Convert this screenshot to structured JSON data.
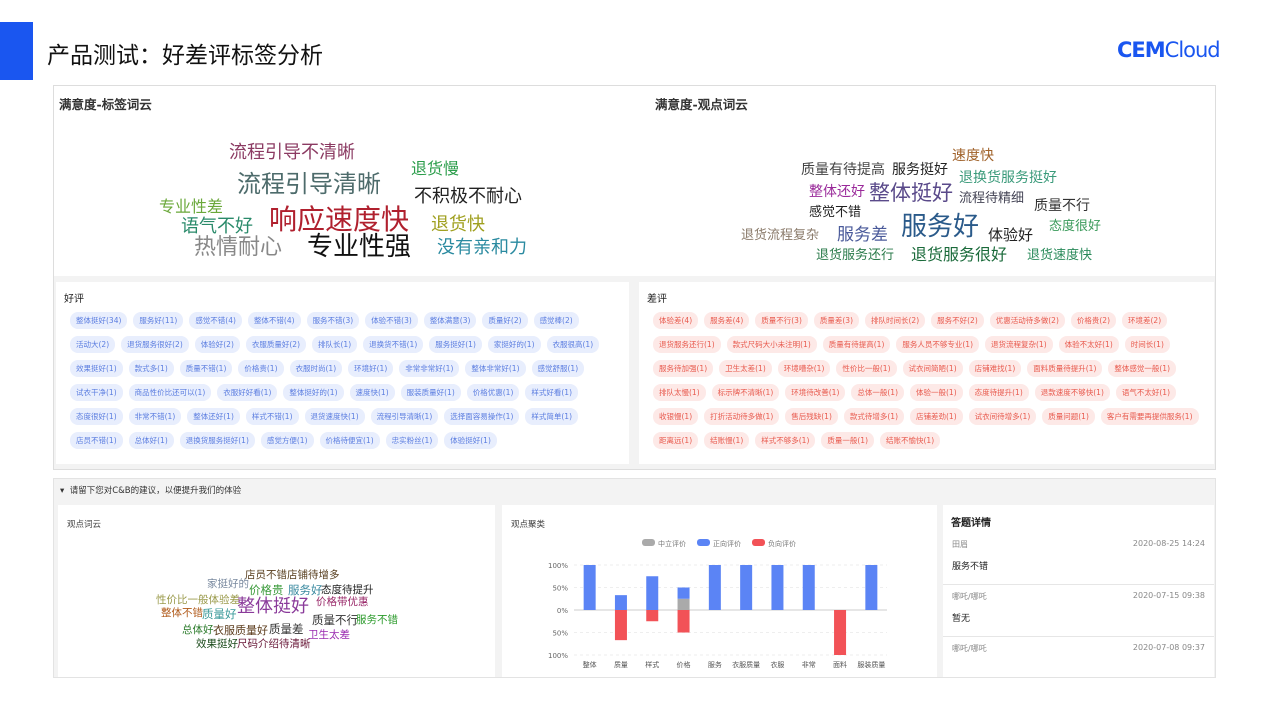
{
  "page": {
    "title": "产品测试：好差评标签分析",
    "logo": "CEMCloud",
    "accent_color": "#1a56f0"
  },
  "tag_cloud": {
    "title": "满意度-标签词云",
    "words": [
      "流程引导不清晰",
      "退货慢",
      "流程引导清晰",
      "不积极不耐心",
      "专业性差",
      "语气不好",
      "响应速度快",
      "退货快",
      "热情耐心",
      "专业性强",
      "没有亲和力"
    ]
  },
  "opinion_cloud": {
    "title": "满意度-观点词云",
    "words": [
      "速度快",
      "质量有待提高",
      "服务挺好",
      "退换货服务挺好",
      "整体还好",
      "整体挺好",
      "流程待精细",
      "质量不行",
      "感觉不错",
      "退货流程复杂",
      "服务差",
      "服务好",
      "体验好",
      "态度很好",
      "退货服务还行",
      "退货服务很好",
      "退货速度快"
    ]
  },
  "good": {
    "title": "好评",
    "rows": [
      [
        "整体挺好(34)",
        "服务好(11)",
        "感觉不错(4)",
        "整体不错(4)",
        "服务不错(3)",
        "体验不错(3)",
        "整体满意(3)",
        "质量好(2)",
        "感觉棒(2)"
      ],
      [
        "活动大(2)",
        "退货服务很好(2)",
        "体验好(2)",
        "衣服质量好(2)",
        "排队长(1)",
        "退换货不错(1)",
        "服务挺好(1)",
        "家挺好的(1)",
        "衣服很高(1)"
      ],
      [
        "效果挺好(1)",
        "款式多(1)",
        "质量不错(1)",
        "价格贵(1)",
        "衣服时尚(1)",
        "环境好(1)",
        "非常非常好(1)",
        "整体非常好(1)",
        "感觉舒服(1)"
      ],
      [
        "试衣干净(1)",
        "商品性价比还可以(1)",
        "衣服好好看(1)",
        "整体挺好的(1)",
        "速度快(1)",
        "服装质量好(1)",
        "价格优惠(1)",
        "样式好看(1)"
      ],
      [
        "态度很好(1)",
        "非常不错(1)",
        "整体还好(1)",
        "样式不错(1)",
        "退货速度快(1)",
        "流程引导清晰(1)",
        "选择面容易操作(1)",
        "样式简单(1)"
      ],
      [
        "店员不错(1)",
        "总体好(1)",
        "退换货服务挺好(1)",
        "感觉方便(1)",
        "价格待便宜(1)",
        "忠实粉丝(1)",
        "体验挺好(1)"
      ]
    ]
  },
  "bad": {
    "title": "差评",
    "rows": [
      [
        "体验差(4)",
        "服务差(4)",
        "质量不行(3)",
        "质量差(3)",
        "排队时间长(2)",
        "服务不好(2)",
        "优惠活动待多做(2)",
        "价格贵(2)",
        "环境差(2)"
      ],
      [
        "退货服务还行(1)",
        "款式尺码大小未注明(1)",
        "质量有待提高(1)",
        "服务人员不够专业(1)",
        "退货流程复杂(1)",
        "体验不太好(1)",
        "时间长(1)"
      ],
      [
        "服务待加强(1)",
        "卫生太差(1)",
        "环境嘈杂(1)",
        "性价比一般(1)",
        "试衣间简陋(1)",
        "店铺难找(1)",
        "面料质量待提升(1)",
        "整体感觉一般(1)"
      ],
      [
        "排队太慢(1)",
        "标示牌不清晰(1)",
        "环境待改善(1)",
        "总体一般(1)",
        "体验一般(1)",
        "态度待提升(1)",
        "退款速度不够快(1)",
        "语气不太好(1)"
      ],
      [
        "收银慢(1)",
        "打折活动待多做(1)",
        "售后残缺(1)",
        "款式待增多(1)",
        "店铺差劲(1)",
        "试衣间待增多(1)",
        "质量问题(1)",
        "客户有需要再提供服务(1)"
      ],
      [
        "距离远(1)",
        "结账慢(1)",
        "样式不够多(1)",
        "质量一般(1)",
        "结账不愉快(1)"
      ]
    ]
  },
  "suggestion": {
    "header": "请留下您对C&B的建议，以便提升我们的体验",
    "cloud": {
      "title": "观点词云",
      "words": [
        "店员不错店铺待增多",
        "家挺好的",
        "价格贵",
        "服务好",
        "态度待提升",
        "性价比一般体验差",
        "整体挺好",
        "价格带优惠",
        "整体不错",
        "质量好",
        "质量不行",
        "服务不错",
        "总体好",
        "衣服质量好",
        "质量差",
        "卫生太差",
        "效果挺好",
        "尺码介绍待清晰"
      ]
    },
    "details": {
      "title": "答题详情",
      "items": [
        {
          "name": "田眉",
          "time": "2020-08-25 14:24",
          "answer": "服务不错"
        },
        {
          "name": "哪吒/哪吒",
          "time": "2020-07-15 09:38",
          "answer": "暂无"
        },
        {
          "name": "哪吒/哪吒",
          "time": "2020-07-08 09:37",
          "answer": ""
        }
      ]
    }
  },
  "chart_data": {
    "type": "bar",
    "title": "观点聚类",
    "stacked": true,
    "categories": [
      "整体",
      "质量",
      "样式",
      "价格",
      "服务",
      "衣服质量",
      "衣服",
      "非常",
      "面料",
      "服装质量"
    ],
    "series": [
      {
        "name": "中立评价",
        "color": "#aaaaaa",
        "values": [
          0,
          0,
          0,
          25,
          0,
          0,
          0,
          0,
          0,
          0
        ]
      },
      {
        "name": "正向评价",
        "color": "#5b84f5",
        "values": [
          100,
          33,
          75,
          25,
          100,
          100,
          100,
          100,
          0,
          100
        ]
      },
      {
        "name": "负向评价",
        "color": "#f25257",
        "values": [
          0,
          -67,
          -25,
          -50,
          0,
          0,
          0,
          0,
          -100,
          0
        ]
      }
    ],
    "yticks": [
      "100%",
      "50%",
      "0%",
      "50%",
      "100%"
    ],
    "ylim": [
      -100,
      100
    ],
    "grid": true,
    "legend": "top"
  }
}
